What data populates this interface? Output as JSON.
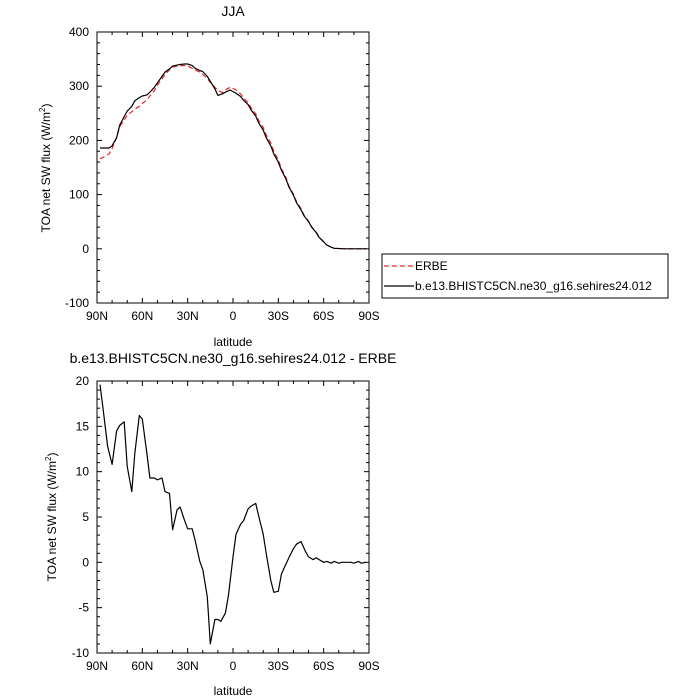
{
  "chart_data": [
    {
      "type": "line",
      "title": "JJA",
      "xlabel": "latitude",
      "ylabel": "TOA net SW flux (W/m",
      "ylabel_sup": "2",
      "ylabel_close": ")",
      "xlim": [
        90,
        -90
      ],
      "ylim": [
        -100,
        400
      ],
      "xticks": [
        {
          "value": 90,
          "label": "90N"
        },
        {
          "value": 60,
          "label": "60N"
        },
        {
          "value": 30,
          "label": "30N"
        },
        {
          "value": 0,
          "label": "0"
        },
        {
          "value": -30,
          "label": "30S"
        },
        {
          "value": -60,
          "label": "60S"
        },
        {
          "value": -90,
          "label": "90S"
        }
      ],
      "yticks": [
        {
          "value": -100,
          "label": "-100"
        },
        {
          "value": 0,
          "label": "0"
        },
        {
          "value": 100,
          "label": "100"
        },
        {
          "value": 200,
          "label": "200"
        },
        {
          "value": 300,
          "label": "300"
        },
        {
          "value": 400,
          "label": "400"
        }
      ],
      "grid": false,
      "legend": "right",
      "series": [
        {
          "name": "ERBE",
          "color": "#e8262b",
          "dashed": true,
          "x": [
            88,
            85,
            82,
            80,
            77,
            75,
            72,
            70,
            67,
            65,
            62,
            60,
            57,
            55,
            52,
            50,
            47,
            45,
            42,
            40,
            37,
            35,
            32,
            30,
            27,
            25,
            22,
            20,
            17,
            15,
            12,
            10,
            7,
            5,
            2,
            0,
            -2,
            -5,
            -7,
            -10,
            -12,
            -15,
            -17,
            -20,
            -22,
            -25,
            -27,
            -30,
            -32,
            -35,
            -37,
            -40,
            -42,
            -45,
            -47,
            -50,
            -52,
            -55,
            -57,
            -60,
            -62,
            -65,
            -67,
            -70,
            -72,
            -75,
            -77,
            -80,
            -82,
            -85,
            -88
          ],
          "y": [
            166,
            170,
            175,
            185,
            205,
            225,
            238,
            246,
            253,
            258,
            263,
            268,
            275,
            282,
            292,
            302,
            313,
            322,
            330,
            335,
            337,
            338,
            338,
            337,
            333,
            330,
            326,
            322,
            314,
            307,
            298,
            292,
            288,
            293,
            298,
            296,
            293,
            286,
            278,
            270,
            260,
            249,
            237,
            224,
            210,
            195,
            180,
            164,
            148,
            132,
            116,
            101,
            87,
            74,
            62,
            51,
            41,
            31,
            22,
            13,
            7,
            3,
            1,
            0.5,
            0.2,
            0,
            0,
            0,
            0,
            0,
            0
          ]
        },
        {
          "name": "b.e13.BHISTC5CN.ne30_g16.sehires24.012",
          "color": "#000000",
          "dashed": false,
          "x": [
            88,
            85,
            82,
            80,
            77,
            75,
            72,
            70,
            67,
            65,
            62,
            60,
            57,
            55,
            52,
            50,
            47,
            45,
            42,
            40,
            37,
            35,
            32,
            30,
            27,
            25,
            22,
            20,
            17,
            15,
            12,
            10,
            7,
            5,
            2,
            0,
            -2,
            -5,
            -7,
            -10,
            -12,
            -15,
            -17,
            -20,
            -22,
            -25,
            -27,
            -30,
            -32,
            -35,
            -37,
            -40,
            -42,
            -45,
            -47,
            -50,
            -52,
            -55,
            -57,
            -60,
            -62,
            -65,
            -67,
            -70,
            -72,
            -75,
            -77,
            -80,
            -82,
            -85,
            -88
          ],
          "y": [
            186,
            186,
            186,
            190,
            205,
            228,
            244,
            254,
            263,
            273,
            279,
            282,
            284,
            289,
            298,
            306,
            318,
            326,
            332,
            337,
            339,
            340,
            341,
            341,
            338,
            333,
            329,
            327,
            318,
            309,
            295,
            283,
            286,
            289,
            293,
            290,
            287,
            281,
            274,
            266,
            256,
            245,
            232,
            219,
            205,
            190,
            175,
            160,
            145,
            129,
            114,
            99,
            85,
            72,
            61,
            50,
            40,
            30,
            21,
            13,
            7,
            3,
            1,
            0.5,
            0.2,
            0,
            0,
            0,
            0,
            0,
            0
          ]
        }
      ]
    },
    {
      "type": "line",
      "title": "b.e13.BHISTC5CN.ne30_g16.sehires24.012 - ERBE",
      "xlabel": "latitude",
      "ylabel": "TOA net SW flux (W/m",
      "ylabel_sup": "2",
      "ylabel_close": ")",
      "xlim": [
        90,
        -90
      ],
      "ylim": [
        -10,
        20
      ],
      "xticks": [
        {
          "value": 90,
          "label": "90N"
        },
        {
          "value": 60,
          "label": "60N"
        },
        {
          "value": 30,
          "label": "30N"
        },
        {
          "value": 0,
          "label": "0"
        },
        {
          "value": -30,
          "label": "30S"
        },
        {
          "value": -60,
          "label": "60S"
        },
        {
          "value": -90,
          "label": "90S"
        }
      ],
      "yticks": [
        {
          "value": -10,
          "label": "-10"
        },
        {
          "value": -5,
          "label": "-5"
        },
        {
          "value": 0,
          "label": "0"
        },
        {
          "value": 5,
          "label": "5"
        },
        {
          "value": 10,
          "label": "10"
        },
        {
          "value": 15,
          "label": "15"
        },
        {
          "value": 20,
          "label": "20"
        }
      ],
      "grid": false,
      "series": [
        {
          "color": "#000000",
          "dashed": false,
          "x": [
            88,
            86,
            83,
            80,
            77,
            75,
            72,
            70,
            67,
            65,
            62,
            60,
            57,
            55,
            52,
            50,
            47,
            45,
            42,
            40,
            37,
            35,
            32,
            30,
            27,
            25,
            22,
            20,
            17,
            15,
            12,
            10,
            8,
            5,
            3,
            0,
            -2,
            -5,
            -7,
            -10,
            -12,
            -15,
            -17,
            -20,
            -22,
            -25,
            -27,
            -30,
            -32,
            -35,
            -37,
            -40,
            -42,
            -45,
            -48,
            -50,
            -53,
            -55,
            -57,
            -60,
            -62,
            -65,
            -67,
            -70,
            -72,
            -75,
            -78,
            -80,
            -83,
            -85,
            -88
          ],
          "y": [
            19.6,
            17.0,
            12.8,
            10.8,
            14.5,
            15.1,
            15.5,
            10.6,
            7.8,
            12.0,
            16.2,
            15.8,
            12.0,
            9.3,
            9.3,
            9.1,
            9.3,
            7.8,
            7.6,
            3.6,
            5.8,
            6.1,
            4.6,
            3.7,
            3.7,
            2.4,
            0.1,
            -0.8,
            -3.8,
            -9.0,
            -6.3,
            -6.3,
            -6.5,
            -5.6,
            -3.6,
            0.6,
            3.1,
            4.2,
            4.6,
            5.9,
            6.2,
            6.5,
            5.1,
            3.1,
            1.0,
            -2.0,
            -3.3,
            -3.2,
            -1.3,
            -0.2,
            0.5,
            1.5,
            2.0,
            2.3,
            1.2,
            0.6,
            0.3,
            0.5,
            0.3,
            0.0,
            0.1,
            -0.1,
            0.1,
            -0.1,
            0.0,
            0.0,
            0.0,
            -0.1,
            0.1,
            -0.1,
            0.0
          ]
        }
      ]
    }
  ]
}
